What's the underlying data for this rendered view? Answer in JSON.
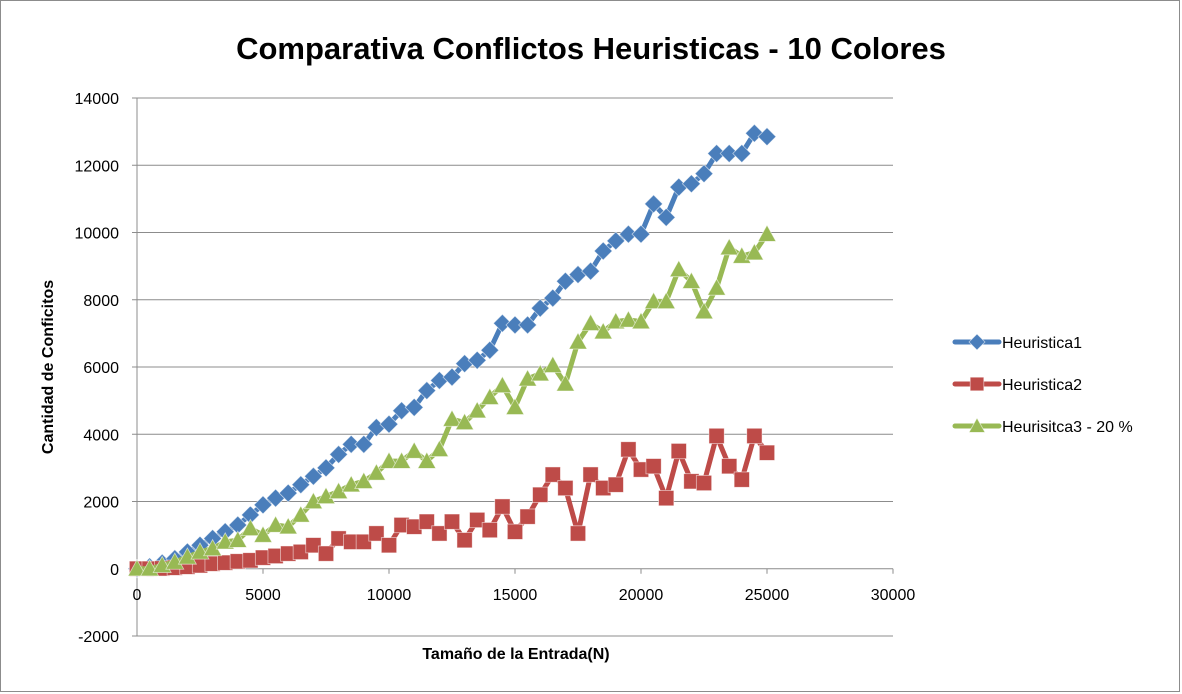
{
  "chart_data": {
    "type": "line",
    "title": "Comparativa Conflictos Heuristicas - 10 Colores",
    "xlabel": "Tamaño de la Entrada(N)",
    "ylabel": "Cantidad de Conficitos",
    "xlim": [
      0,
      30000
    ],
    "ylim": [
      -2000,
      14000
    ],
    "xticks": [
      0,
      5000,
      10000,
      15000,
      20000,
      25000,
      30000
    ],
    "yticks": [
      -2000,
      0,
      2000,
      4000,
      6000,
      8000,
      10000,
      12000,
      14000
    ],
    "grid": "horizontal",
    "legend_position": "right",
    "x": [
      0,
      500,
      1000,
      1500,
      2000,
      2500,
      3000,
      3500,
      4000,
      4500,
      5000,
      5500,
      6000,
      6500,
      7000,
      7500,
      8000,
      8500,
      9000,
      9500,
      10000,
      10500,
      11000,
      11500,
      12000,
      12500,
      13000,
      13500,
      14000,
      14500,
      15000,
      15500,
      16000,
      16500,
      17000,
      17500,
      18000,
      18500,
      19000,
      19500,
      20000,
      20500,
      21000,
      21500,
      22000,
      22500,
      23000,
      23500,
      24000,
      24500,
      25000
    ],
    "series": [
      {
        "name": "Heuristica1",
        "color": "#4a7ebb",
        "marker": "diamond",
        "values": [
          0,
          60,
          170,
          300,
          500,
          700,
          900,
          1100,
          1300,
          1600,
          1900,
          2100,
          2250,
          2500,
          2750,
          3000,
          3400,
          3700,
          3700,
          4200,
          4300,
          4700,
          4800,
          5300,
          5600,
          5700,
          6100,
          6200,
          6500,
          7300,
          7250,
          7250,
          7750,
          8050,
          8550,
          8750,
          8850,
          9450,
          9750,
          9950,
          9950,
          10850,
          10450,
          11350,
          11450,
          11750,
          12350,
          12350,
          12350,
          12950,
          12850
        ]
      },
      {
        "name": "Heuristica2",
        "color": "#be4b48",
        "marker": "square",
        "values": [
          0,
          0,
          10,
          30,
          60,
          100,
          150,
          180,
          220,
          250,
          330,
          380,
          450,
          500,
          700,
          450,
          900,
          800,
          800,
          1050,
          700,
          1300,
          1250,
          1400,
          1050,
          1400,
          850,
          1450,
          1150,
          1850,
          1100,
          1550,
          2200,
          2800,
          2400,
          1050,
          2800,
          2400,
          2500,
          3550,
          2950,
          3050,
          2100,
          3500,
          2600,
          2550,
          3950,
          3050,
          2650,
          3950,
          3450
        ]
      },
      {
        "name": "Heurisitca3 - 20 %",
        "color": "#98b954",
        "marker": "triangle",
        "values": [
          0,
          0,
          100,
          200,
          350,
          500,
          600,
          800,
          850,
          1200,
          1000,
          1300,
          1250,
          1600,
          2000,
          2150,
          2300,
          2500,
          2600,
          2850,
          3200,
          3200,
          3500,
          3200,
          3550,
          4450,
          4350,
          4700,
          5100,
          5450,
          4800,
          5650,
          5800,
          6050,
          5500,
          6750,
          7300,
          7050,
          7350,
          7400,
          7350,
          7950,
          7950,
          8900,
          8550,
          7650,
          8350,
          9550,
          9300,
          9400,
          9950
        ]
      }
    ]
  }
}
